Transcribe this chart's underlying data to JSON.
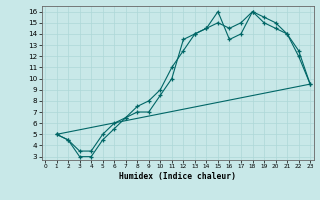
{
  "title": "",
  "xlabel": "Humidex (Indice chaleur)",
  "bg_color": "#c8e8e8",
  "line_color": "#006666",
  "grid_color": "#add8d8",
  "xticks": [
    0,
    1,
    2,
    3,
    4,
    5,
    6,
    7,
    8,
    9,
    10,
    11,
    12,
    13,
    14,
    15,
    16,
    17,
    18,
    19,
    20,
    21,
    22,
    23
  ],
  "yticks": [
    3,
    4,
    5,
    6,
    7,
    8,
    9,
    10,
    11,
    12,
    13,
    14,
    15,
    16
  ],
  "xlim": [
    -0.3,
    23.3
  ],
  "ylim": [
    2.7,
    16.5
  ],
  "line1_x": [
    1,
    2,
    3,
    4,
    5,
    6,
    7,
    8,
    9,
    10,
    11,
    12,
    13,
    14,
    15,
    16,
    17,
    18,
    19,
    20,
    21,
    22,
    23
  ],
  "line1_y": [
    5,
    4.5,
    3,
    3,
    4.5,
    5.5,
    6.5,
    7,
    7,
    8.5,
    10,
    13.5,
    14,
    14.5,
    16,
    13.5,
    14,
    16,
    15,
    14.5,
    14,
    12.5,
    9.5
  ],
  "line2_x": [
    1,
    2,
    3,
    4,
    5,
    6,
    7,
    8,
    9,
    10,
    11,
    12,
    13,
    14,
    15,
    16,
    17,
    18,
    19,
    20,
    21,
    22,
    23
  ],
  "line2_y": [
    5,
    4.5,
    3.5,
    3.5,
    5,
    6,
    6.5,
    7.5,
    8,
    9,
    11,
    12.5,
    14,
    14.5,
    15,
    14.5,
    15,
    16,
    15.5,
    15,
    14,
    12,
    9.5
  ],
  "line3_x": [
    1,
    23
  ],
  "line3_y": [
    5,
    9.5
  ]
}
